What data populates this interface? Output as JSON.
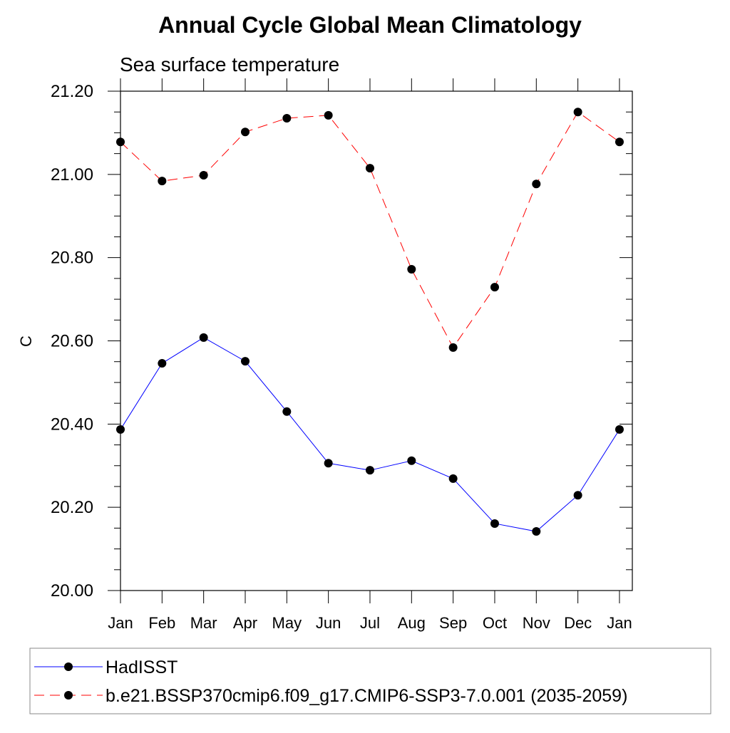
{
  "chart_data": {
    "type": "line",
    "title": "Annual Cycle Global Mean Climatology",
    "subtitle": "Sea surface temperature",
    "xlabel": "",
    "ylabel": "C",
    "categories": [
      "Jan",
      "Feb",
      "Mar",
      "Apr",
      "May",
      "Jun",
      "Jul",
      "Aug",
      "Sep",
      "Oct",
      "Nov",
      "Dec",
      "Jan"
    ],
    "ylim": [
      20.0,
      21.2
    ],
    "yticks": [
      20.0,
      20.2,
      20.4,
      20.6,
      20.8,
      21.0,
      21.2
    ],
    "ytick_labels": [
      "20.00",
      "20.20",
      "20.40",
      "20.60",
      "20.80",
      "21.00",
      "21.20"
    ],
    "yminor_step": 0.05,
    "grid": false,
    "legend_placement": "bottom",
    "series": [
      {
        "name": "HadISST",
        "color": "#0000ff",
        "dash": "solid",
        "marker": "filled-circle",
        "values": [
          20.387,
          20.546,
          20.608,
          20.551,
          20.43,
          20.306,
          20.289,
          20.312,
          20.269,
          20.161,
          20.142,
          20.229,
          20.387
        ]
      },
      {
        "name": "b.e21.BSSP370cmip6.f09_g17.CMIP6-SSP3-7.0.001 (2035-2059)",
        "color": "#ff0000",
        "dash": "dashed",
        "marker": "filled-circle",
        "values": [
          21.078,
          20.984,
          20.998,
          21.102,
          21.135,
          21.142,
          21.015,
          20.772,
          20.584,
          20.729,
          20.977,
          21.15,
          21.078
        ]
      }
    ]
  }
}
